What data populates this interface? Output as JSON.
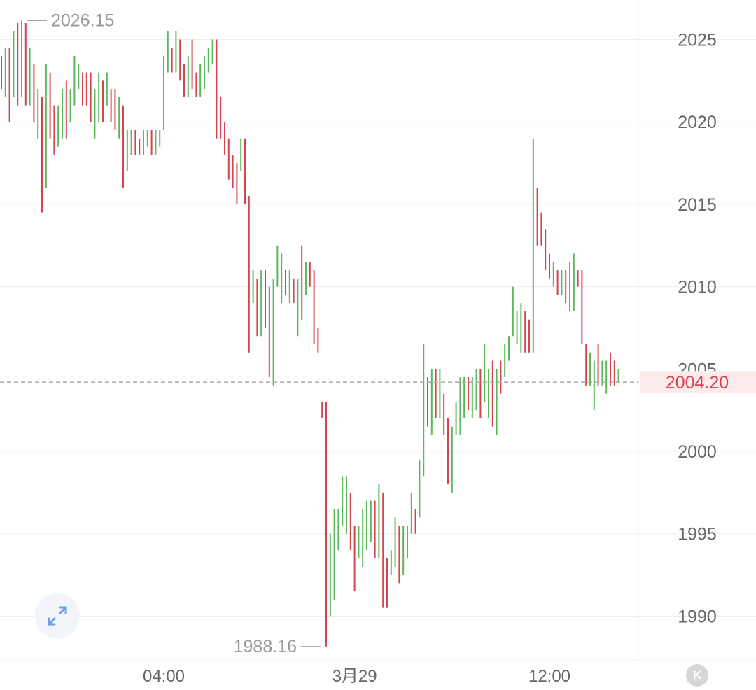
{
  "chart_data": {
    "type": "ohlc",
    "y_ticks": [
      2025,
      2020,
      2015,
      2010,
      2005,
      2000,
      1995,
      1990
    ],
    "ylim": [
      1987.3,
      2027.4
    ],
    "x_ticks": [
      {
        "label": "04:00",
        "index": 40
      },
      {
        "label": "3月29",
        "index": 87
      },
      {
        "label": "12:00",
        "index": 135
      }
    ],
    "current_price": {
      "value": 2004.2,
      "label": "2004.20"
    },
    "max_label": {
      "value": 2026.15,
      "label": "2026.15"
    },
    "min_label": {
      "value": 1988.16,
      "label": "1988.16"
    },
    "colors": {
      "up": "#5cb85c",
      "down": "#d6454f",
      "grid": "#eeeeee",
      "price_line": "#aaaaaa",
      "price_label_bg": "#fdeaea",
      "price_label_text": "#d6454f",
      "axis_text": "#666666",
      "extreme_text": "#999999"
    },
    "candles": [
      [
        2024.0,
        2022.5,
        2024.0,
        2022.0
      ],
      [
        2022.5,
        2024.0,
        2024.5,
        2021.5
      ],
      [
        2024.0,
        2022.0,
        2024.5,
        2020.0
      ],
      [
        2022.0,
        2024.5,
        2025.5,
        2021.5
      ],
      [
        2024.5,
        2022.0,
        2026.0,
        2021.0
      ],
      [
        2022.0,
        2026.0,
        2026.15,
        2021.5
      ],
      [
        2026.0,
        2022.0,
        2026.0,
        2021.0
      ],
      [
        2022.0,
        2023.5,
        2024.5,
        2021.0
      ],
      [
        2023.5,
        2021.0,
        2023.5,
        2020.0
      ],
      [
        2021.0,
        2021.0,
        2022.0,
        2019.0
      ],
      [
        2021.0,
        2020.0,
        2021.5,
        2014.5
      ],
      [
        2020.0,
        2023.0,
        2023.5,
        2016.0
      ],
      [
        2023.0,
        2020.0,
        2023.0,
        2019.0
      ],
      [
        2020.0,
        2019.0,
        2021.0,
        2018.0
      ],
      [
        2019.0,
        2020.5,
        2021.0,
        2018.5
      ],
      [
        2020.5,
        2021.5,
        2022.0,
        2019.0
      ],
      [
        2021.5,
        2020.0,
        2022.5,
        2019.0
      ],
      [
        2020.0,
        2021.0,
        2022.0,
        2020.0
      ],
      [
        2021.0,
        2022.0,
        2024.0,
        2021.0
      ],
      [
        2022.0,
        2023.0,
        2023.5,
        2022.0
      ],
      [
        2023.0,
        2022.5,
        2023.0,
        2021.0
      ],
      [
        2022.5,
        2021.5,
        2023.0,
        2021.0
      ],
      [
        2021.5,
        2020.0,
        2023.0,
        2020.0
      ],
      [
        2020.0,
        2021.0,
        2022.0,
        2019.0
      ],
      [
        2021.0,
        2022.5,
        2023.0,
        2020.0
      ],
      [
        2022.5,
        2021.0,
        2022.5,
        2020.0
      ],
      [
        2021.0,
        2022.0,
        2023.0,
        2021.0
      ],
      [
        2022.0,
        2021.5,
        2022.0,
        2020.0
      ],
      [
        2021.5,
        2020.0,
        2022.0,
        2019.5
      ],
      [
        2020.0,
        2021.0,
        2021.5,
        2019.0
      ],
      [
        2021.0,
        2016.0,
        2021.0,
        2016.0
      ],
      [
        2016.0,
        2019.0,
        2019.5,
        2017.0
      ],
      [
        2019.0,
        2019.5,
        2019.5,
        2018.0
      ],
      [
        2019.5,
        2019.0,
        2019.5,
        2018.0
      ],
      [
        2019.0,
        2018.5,
        2019.0,
        2018.0
      ],
      [
        2018.5,
        2019.0,
        2019.5,
        2018.0
      ],
      [
        2019.0,
        2019.0,
        2019.5,
        2018.5
      ],
      [
        2019.0,
        2018.5,
        2019.5,
        2018.0
      ],
      [
        2018.5,
        2019.0,
        2019.5,
        2018.0
      ],
      [
        2019.0,
        2019.5,
        2019.5,
        2018.5
      ],
      [
        2019.5,
        2024.0,
        2024.0,
        2019.5
      ],
      [
        2024.0,
        2024.5,
        2025.5,
        2023.0
      ],
      [
        2024.5,
        2023.5,
        2024.5,
        2023.0
      ],
      [
        2023.5,
        2024.5,
        2025.5,
        2023.0
      ],
      [
        2024.5,
        2022.5,
        2025.0,
        2022.5
      ],
      [
        2022.5,
        2022.0,
        2023.5,
        2021.5
      ],
      [
        2022.0,
        2023.5,
        2024.0,
        2021.5
      ],
      [
        2023.5,
        2022.5,
        2025.0,
        2022.0
      ],
      [
        2022.5,
        2022.0,
        2023.0,
        2021.5
      ],
      [
        2022.0,
        2022.5,
        2023.5,
        2021.5
      ],
      [
        2022.5,
        2023.5,
        2024.0,
        2022.0
      ],
      [
        2023.5,
        2024.0,
        2024.5,
        2023.0
      ],
      [
        2024.0,
        2024.0,
        2025.0,
        2023.5
      ],
      [
        2024.0,
        2020.0,
        2025.0,
        2019.0
      ],
      [
        2020.0,
        2019.5,
        2021.5,
        2019.0
      ],
      [
        2019.5,
        2019.0,
        2020.0,
        2018.0
      ],
      [
        2019.0,
        2018.5,
        2019.0,
        2016.5
      ],
      [
        2018.5,
        2017.0,
        2018.0,
        2016.0
      ],
      [
        2017.0,
        2016.5,
        2017.5,
        2015.0
      ],
      [
        2016.5,
        2017.5,
        2019.0,
        2017.0
      ],
      [
        2017.5,
        2015.0,
        2019.0,
        2015.0
      ],
      [
        2015.0,
        2006.0,
        2015.5,
        2006.0
      ],
      [
        2006.0,
        2011.0,
        2011.0,
        2009.0
      ],
      [
        2011.0,
        2008.0,
        2010.5,
        2007.0
      ],
      [
        2008.0,
        2010.5,
        2011.0,
        2007.0
      ],
      [
        2010.5,
        2010.0,
        2011.0,
        2007.5
      ],
      [
        2010.0,
        2004.5,
        2010.0,
        2004.5
      ],
      [
        2004.5,
        2010.0,
        2010.5,
        2004.0
      ],
      [
        2010.0,
        2011.0,
        2012.5,
        2010.0
      ],
      [
        2011.0,
        2011.0,
        2012.0,
        2009.0
      ],
      [
        2011.0,
        2010.0,
        2011.0,
        2009.5
      ],
      [
        2010.0,
        2010.0,
        2011.0,
        2009.0
      ],
      [
        2010.0,
        2009.5,
        2010.5,
        2009.0
      ],
      [
        2009.5,
        2010.0,
        2010.5,
        2007.0
      ],
      [
        2010.0,
        2009.5,
        2012.5,
        2008.0
      ],
      [
        2009.5,
        2011.0,
        2011.5,
        2009.5
      ],
      [
        2011.0,
        2010.5,
        2011.5,
        2010.0
      ],
      [
        2010.5,
        2010.0,
        2011.0,
        2006.5
      ],
      [
        2010.0,
        2007.0,
        2007.5,
        2006.0
      ],
      [
        2007.0,
        2002.0,
        2003.0,
        2002.0
      ],
      [
        2002.0,
        1988.2,
        2003.0,
        1988.16
      ],
      [
        1988.2,
        1995.0,
        1995.0,
        1990.0
      ],
      [
        1995.0,
        1995.0,
        1996.5,
        1991.0
      ],
      [
        1995.0,
        1996.0,
        1996.5,
        1994.0
      ],
      [
        1996.0,
        1996.0,
        1998.5,
        1995.5
      ],
      [
        1996.0,
        1997.0,
        1998.5,
        1995.0
      ],
      [
        1997.0,
        1995.0,
        1997.5,
        1994.0
      ],
      [
        1995.0,
        1994.0,
        1995.5,
        1991.5
      ],
      [
        1994.0,
        1994.0,
        1995.5,
        1993.5
      ],
      [
        1994.0,
        1994.5,
        1996.5,
        1993.0
      ],
      [
        1994.5,
        1996.0,
        1997.0,
        1994.0
      ],
      [
        1996.0,
        1997.0,
        1997.0,
        1994.5
      ],
      [
        1997.0,
        1995.0,
        1997.0,
        1993.5
      ],
      [
        1995.0,
        1997.5,
        1998.0,
        1993.5
      ],
      [
        1997.5,
        1996.5,
        1997.5,
        1990.5
      ],
      [
        1996.5,
        1992.5,
        1993.5,
        1990.5
      ],
      [
        1992.5,
        1993.0,
        1994.0,
        1992.5
      ],
      [
        1993.0,
        1995.5,
        1996.0,
        1993.0
      ],
      [
        1995.5,
        1993.0,
        1995.5,
        1992.0
      ],
      [
        1993.0,
        1995.0,
        1995.5,
        1992.5
      ],
      [
        1995.0,
        1995.5,
        1995.5,
        1993.5
      ],
      [
        1995.5,
        1997.0,
        1997.5,
        1995.0
      ],
      [
        1997.0,
        1996.0,
        1996.5,
        1995.0
      ],
      [
        1996.0,
        1998.0,
        1999.5,
        1996.0
      ],
      [
        1998.0,
        2004.5,
        2006.5,
        1998.5
      ],
      [
        2004.5,
        2002.0,
        2004.5,
        2001.5
      ],
      [
        2002.0,
        2004.5,
        2005.0,
        2001.0
      ],
      [
        2004.5,
        2003.0,
        2005.0,
        2002.0
      ],
      [
        2003.0,
        2003.5,
        2005.0,
        2002.0
      ],
      [
        2003.5,
        2001.0,
        2003.5,
        2001.0
      ],
      [
        2001.0,
        2000.0,
        2002.0,
        1998.0
      ],
      [
        2000.0,
        2000.5,
        2001.5,
        1997.5
      ],
      [
        2000.5,
        2001.0,
        2003.0,
        2001.0
      ],
      [
        2001.0,
        2003.0,
        2004.5,
        2001.0
      ],
      [
        2003.0,
        2004.0,
        2004.5,
        2002.0
      ],
      [
        2004.0,
        2002.5,
        2004.5,
        2002.5
      ],
      [
        2002.5,
        2003.0,
        2004.5,
        2002.0
      ],
      [
        2003.0,
        2004.5,
        2005.0,
        2002.5
      ],
      [
        2004.5,
        2002.5,
        2005.0,
        2002.0
      ],
      [
        2002.5,
        2003.5,
        2006.5,
        2003.0
      ],
      [
        2003.5,
        2004.0,
        2005.0,
        2002.0
      ],
      [
        2004.0,
        2003.0,
        2005.5,
        2001.5
      ],
      [
        2003.0,
        2004.5,
        2005.0,
        2001.0
      ],
      [
        2004.5,
        2003.5,
        2005.5,
        2003.5
      ],
      [
        2003.5,
        2005.5,
        2006.5,
        2004.5
      ],
      [
        2005.5,
        2006.5,
        2007.0,
        2005.5
      ],
      [
        2006.5,
        2007.0,
        2010.0,
        2007.0
      ],
      [
        2007.0,
        2008.0,
        2008.5,
        2006.5
      ],
      [
        2008.0,
        2008.5,
        2009.0,
        2006.0
      ],
      [
        2008.5,
        2007.5,
        2008.5,
        2006.0
      ],
      [
        2007.5,
        2006.5,
        2008.0,
        2006.0
      ],
      [
        2006.5,
        2018.5,
        2019.0,
        2006.0
      ],
      [
        2018.5,
        2014.5,
        2016.0,
        2012.5
      ],
      [
        2014.5,
        2013.5,
        2014.5,
        2012.5
      ],
      [
        2013.5,
        2012.0,
        2013.5,
        2011.0
      ],
      [
        2012.0,
        2011.0,
        2012.0,
        2010.5
      ],
      [
        2011.0,
        2011.5,
        2011.5,
        2010.0
      ],
      [
        2011.5,
        2011.0,
        2011.0,
        2009.5
      ],
      [
        2011.0,
        2011.0,
        2011.0,
        2009.5
      ],
      [
        2011.0,
        2010.0,
        2011.0,
        2009.0
      ],
      [
        2010.0,
        2011.0,
        2011.5,
        2008.5
      ],
      [
        2011.0,
        2011.0,
        2012.0,
        2008.5
      ],
      [
        2011.0,
        2010.5,
        2011.0,
        2010.0
      ],
      [
        2010.5,
        2006.5,
        2011.0,
        2006.5
      ],
      [
        2006.5,
        2004.5,
        2006.5,
        2004.0
      ],
      [
        2004.5,
        2004.5,
        2006.0,
        2004.0
      ],
      [
        2004.5,
        2005.5,
        2005.5,
        2002.5
      ],
      [
        2005.5,
        2004.5,
        2006.5,
        2004.0
      ],
      [
        2004.5,
        2004.5,
        2005.5,
        2004.0
      ],
      [
        2004.5,
        2005.0,
        2005.5,
        2003.5
      ],
      [
        2005.0,
        2004.5,
        2006.0,
        2004.0
      ],
      [
        2004.5,
        2004.2,
        2005.5,
        2004.0
      ],
      [
        2004.2,
        2004.2,
        2005.0,
        2004.2
      ]
    ]
  },
  "ui": {
    "expand_icon": "expand-arrows-icon",
    "k_button_label": "K",
    "k_button_icon": "k-line-icon"
  }
}
